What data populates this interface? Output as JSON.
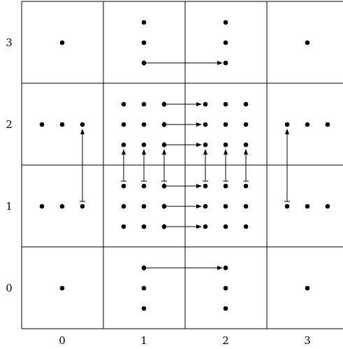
{
  "x_labels": [
    "0",
    "1",
    "2",
    "3"
  ],
  "y_labels": [
    "0",
    "1",
    "2",
    "3"
  ],
  "colors": {
    "line": "#000000",
    "dot": "#000000",
    "background": "#ffffff"
  }
}
